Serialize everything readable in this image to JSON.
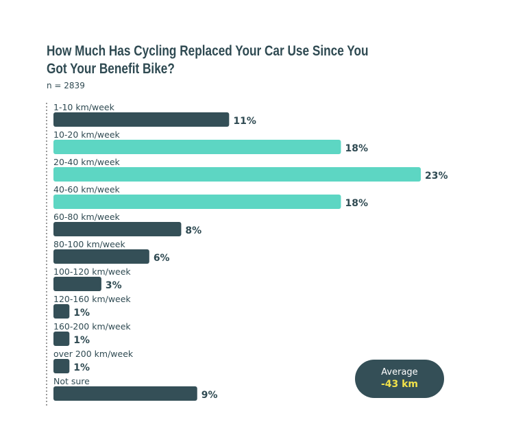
{
  "chart_data": {
    "type": "bar",
    "orientation": "horizontal",
    "title": "How Much Has Cycling Replaced Your Car Use Since You Got Your Benefit Bike?",
    "subtitle": "n = 2839",
    "categories": [
      "1-10 km/week",
      "10-20 km/week",
      "20-40 km/week",
      "40-60 km/week",
      "60-80 km/week",
      "80-100 km/week",
      "100-120 km/week",
      "120-160 km/week",
      "160-200 km/week",
      "over 200 km/week",
      "Not sure"
    ],
    "values": [
      11,
      18,
      23,
      18,
      8,
      6,
      3,
      1,
      1,
      1,
      9
    ],
    "value_labels": [
      "11%",
      "18%",
      "23%",
      "18%",
      "8%",
      "6%",
      "3%",
      "1%",
      "1%",
      "1%",
      "9%"
    ],
    "highlight": [
      false,
      true,
      true,
      true,
      false,
      false,
      false,
      false,
      false,
      false,
      false
    ],
    "xlabel": "",
    "ylabel": "",
    "grid": false,
    "colors": {
      "default": "#344f57",
      "highlight": "#5dd6c3",
      "text": "#2f4a52",
      "axis": "#555555"
    }
  },
  "callout": {
    "label": "Average",
    "value": "-43 km",
    "bg": "#344f57",
    "value_color": "#f2e24a"
  }
}
